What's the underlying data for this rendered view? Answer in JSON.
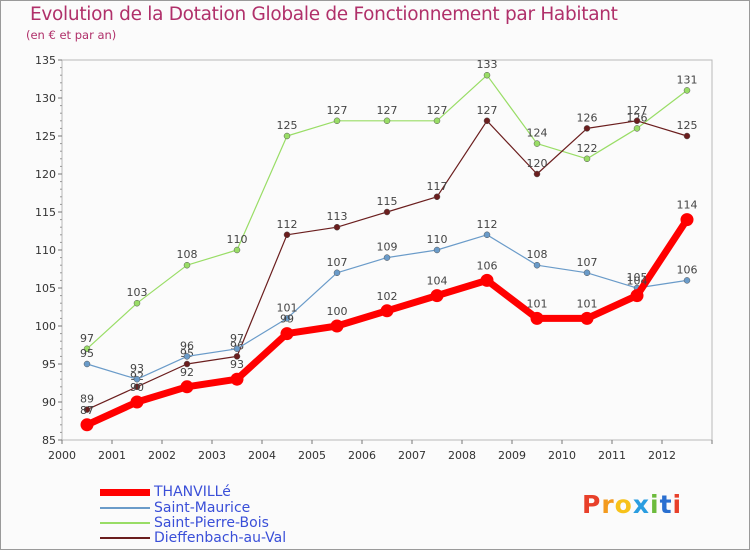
{
  "header": {
    "title": "Evolution de la Dotation Globale de Fonctionnement par Habitant",
    "subtitle": "(en € et par an)"
  },
  "logo": {
    "text": "Proxiti",
    "letter_colors": [
      "#e8402a",
      "#f39a1e",
      "#f7c21a",
      "#2a9de0",
      "#6cbb3c",
      "#2a6fd0",
      "#e8402a"
    ]
  },
  "colors": {
    "thanville": "#ff0000",
    "saint_maurice": "#6a9bc9",
    "saint_pierre_bois": "#99dd66",
    "dieffenbach": "#6b1e1e",
    "title": "#b0306a",
    "legend_text": "#3a4fd8"
  },
  "chart_data": {
    "type": "line",
    "title": "Evolution de la Dotation Globale de Fonctionnement par Habitant",
    "subtitle": "(en € et par an)",
    "x": [
      "2000",
      "2001",
      "2002",
      "2003",
      "2004",
      "2005",
      "2006",
      "2007",
      "2008",
      "2009",
      "2010",
      "2011",
      "2012"
    ],
    "ylim": [
      85,
      135
    ],
    "yticks": [
      85,
      90,
      95,
      100,
      105,
      110,
      115,
      120,
      125,
      130,
      135
    ],
    "grid": false,
    "legend_position": "bottom-left",
    "series": [
      {
        "name": "THANVILLé",
        "key": "thanville",
        "values": [
          87,
          90,
          92,
          93,
          99,
          100,
          102,
          104,
          106,
          101,
          101,
          104,
          114
        ]
      },
      {
        "name": "Saint-Maurice",
        "key": "saint_maurice",
        "values": [
          95,
          93,
          96,
          97,
          101,
          107,
          109,
          110,
          112,
          108,
          107,
          105,
          106
        ]
      },
      {
        "name": "Saint-Pierre-Bois",
        "key": "saint_pierre_bois",
        "values": [
          97,
          103,
          108,
          110,
          125,
          127,
          127,
          127,
          133,
          124,
          122,
          126,
          131
        ]
      },
      {
        "name": "Dieffenbach-au-Val",
        "key": "dieffenbach",
        "values": [
          89,
          92,
          95,
          96,
          112,
          113,
          115,
          117,
          127,
          120,
          126,
          127,
          125
        ]
      }
    ]
  }
}
